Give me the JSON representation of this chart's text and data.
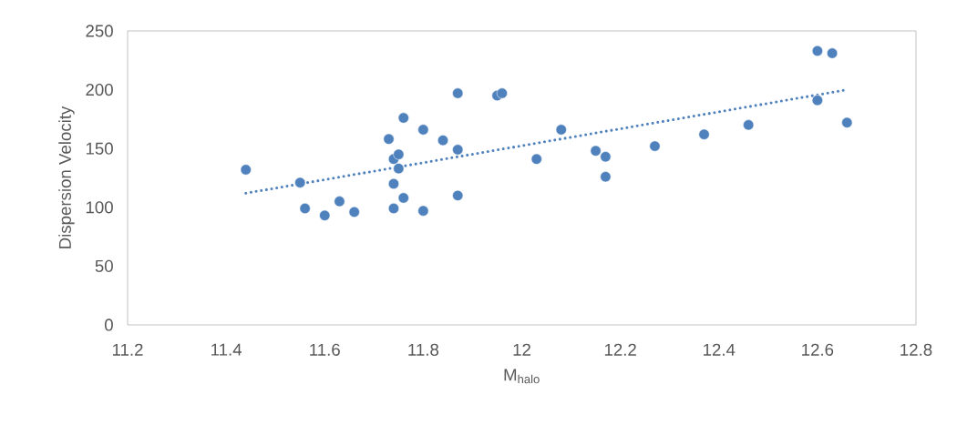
{
  "chart_data": {
    "type": "scatter",
    "xlabel": "M$_{halo}$",
    "ylabel": "Dispersion Velocity",
    "series": [
      {
        "color": "#4f81bd",
        "marker": "circle",
        "x": [
          11.44,
          11.55,
          11.56,
          11.6,
          11.63,
          11.66,
          11.73,
          11.74,
          11.75,
          11.75,
          11.74,
          11.74,
          11.76,
          11.76,
          11.8,
          11.8,
          11.84,
          11.87,
          11.87,
          11.87,
          11.95,
          11.96,
          12.03,
          12.08,
          12.15,
          12.17,
          12.17,
          12.27,
          12.37,
          12.46,
          12.6,
          12.63,
          12.6,
          12.66
        ],
        "values": [
          132,
          121,
          99,
          93,
          105,
          96,
          158,
          141,
          145,
          133,
          120,
          99,
          176,
          108,
          166,
          97,
          157,
          197,
          149,
          110,
          195,
          197,
          141,
          166,
          148,
          143,
          126,
          152,
          162,
          170,
          233,
          231,
          191,
          172
        ]
      },
      {
        "type": "line",
        "color": "#4f81bd",
        "line_style": "dotted",
        "x": [
          11.44,
          12.66
        ],
        "values": [
          112,
          200
        ]
      }
    ],
    "xlim": [
      11.2,
      12.8
    ],
    "xticks": [
      11.2,
      11.4,
      11.6,
      11.8,
      12,
      12.2,
      12.4,
      12.6,
      12.8
    ],
    "ylim": [
      0,
      250
    ],
    "yticks": [
      0,
      50,
      100,
      150,
      200,
      250
    ],
    "grid": false
  }
}
